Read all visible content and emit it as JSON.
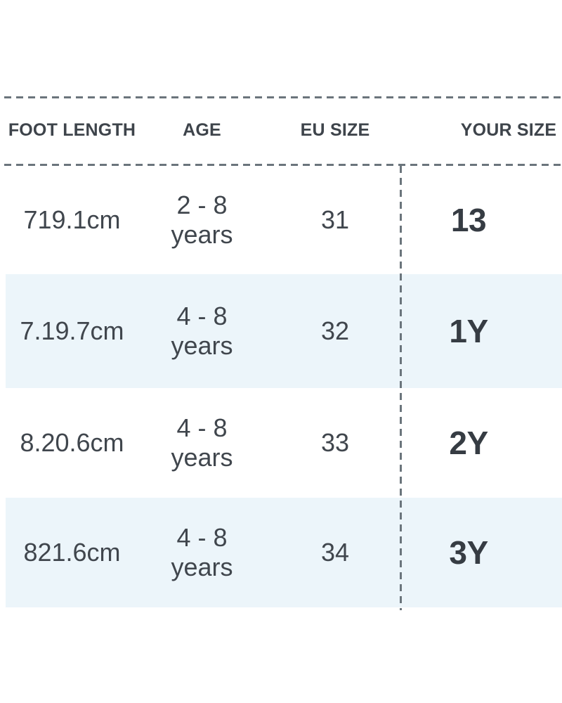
{
  "chart_data": {
    "type": "table",
    "columns": [
      "FOOT LENGTH",
      "AGE",
      "EU SIZE",
      "YOUR SIZE"
    ],
    "rows": [
      [
        "719.1cm",
        "2 - 8 years",
        "31",
        "13"
      ],
      [
        "7.19.7cm",
        "4 - 8 years",
        "32",
        "1Y"
      ],
      [
        "8.20.6cm",
        "4 - 8 years",
        "33",
        "2Y"
      ],
      [
        "821.6cm",
        "4 - 8 years",
        "34",
        "3Y"
      ]
    ],
    "layout": {
      "alternating_row_shading": "rows 2 and 4 shaded light blue",
      "dashed_rules": "horizontal above and below header, vertical before YOUR SIZE column"
    }
  },
  "colors": {
    "alt_row_background": "#ecf5fa",
    "dashed_line": "#6b757c",
    "header_text": "#3e444b",
    "cell_text": "#40464d",
    "your_size_text": "#363c43"
  }
}
